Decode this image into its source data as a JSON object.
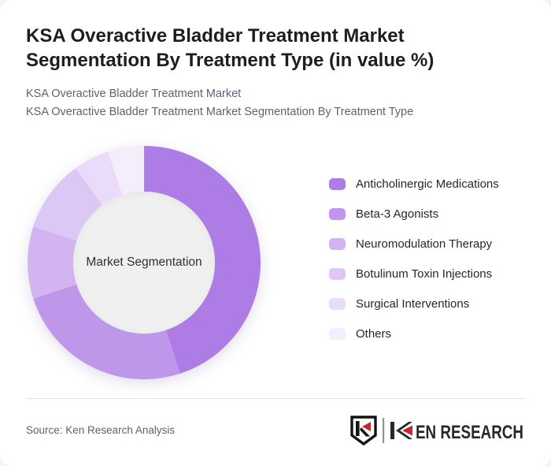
{
  "page": {
    "title": "KSA Overactive Bladder Treatment Market Segmentation By Treatment Type (in value %)",
    "subtitle_line1": "KSA Overactive Bladder Treatment Market",
    "subtitle_line2": "KSA Overactive Bladder Treatment Market Segmentation By Treatment Type"
  },
  "chart_data": {
    "type": "pie",
    "subtype": "donut",
    "title": "KSA Overactive Bladder Treatment Market Segmentation By Treatment Type (in value %)",
    "center_label": "Market Segmentation",
    "unit": "% of market value",
    "labels": [
      "Anticholinergic Medications",
      "Beta-3 Agonists",
      "Neuromodulation Therapy",
      "Botulinum Toxin Injections",
      "Surgical Interventions",
      "Others"
    ],
    "values": [
      45,
      25,
      10,
      10,
      5,
      5
    ],
    "colors": [
      "#ad7ce4",
      "#bf97ea",
      "#d2b4f0",
      "#ddc7f5",
      "#e9dbf9",
      "#f4edfc"
    ],
    "legend_position": "right",
    "start_angle_deg": 0,
    "direction": "clockwise",
    "center_circle_color": "#f0f0f1"
  },
  "footer": {
    "source_label": "Source: Ken Research Analysis",
    "logo_text": "KEN RESEARCH",
    "logo_red": "#c1272d",
    "logo_dark": "#26282a"
  }
}
